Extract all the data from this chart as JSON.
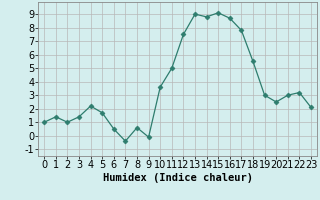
{
  "x": [
    0,
    1,
    2,
    3,
    4,
    5,
    6,
    7,
    8,
    9,
    10,
    11,
    12,
    13,
    14,
    15,
    16,
    17,
    18,
    19,
    20,
    21,
    22,
    23
  ],
  "y": [
    1.0,
    1.4,
    1.0,
    1.4,
    2.2,
    1.7,
    0.5,
    -0.4,
    0.6,
    -0.1,
    3.6,
    5.0,
    7.5,
    9.0,
    8.8,
    9.1,
    8.7,
    7.8,
    5.5,
    3.0,
    2.5,
    3.0,
    3.2,
    2.1
  ],
  "line_color": "#2e7d6e",
  "marker": "D",
  "marker_size": 2.5,
  "bg_color": "#d4eeee",
  "grid_color": "#b8b8b8",
  "xlabel": "Humidex (Indice chaleur)",
  "xlim": [
    -0.5,
    23.5
  ],
  "ylim": [
    -1.5,
    9.9
  ],
  "yticks": [
    -1,
    0,
    1,
    2,
    3,
    4,
    5,
    6,
    7,
    8,
    9
  ],
  "xticks": [
    0,
    1,
    2,
    3,
    4,
    5,
    6,
    7,
    8,
    9,
    10,
    11,
    12,
    13,
    14,
    15,
    16,
    17,
    18,
    19,
    20,
    21,
    22,
    23
  ],
  "label_fontsize": 7.5,
  "tick_fontsize": 7
}
